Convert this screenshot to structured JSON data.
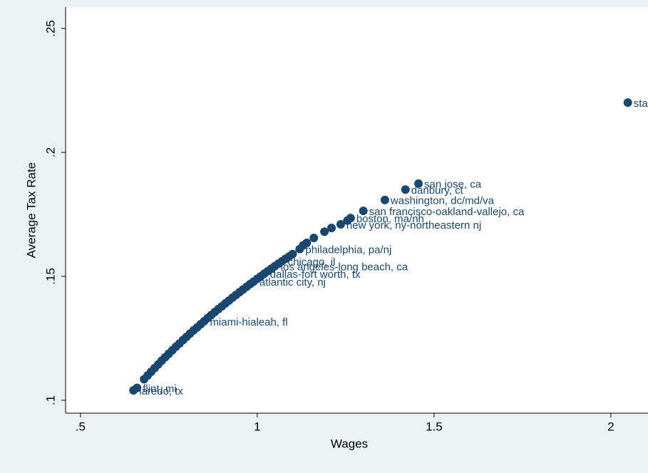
{
  "chart_data": {
    "type": "scatter",
    "xlabel": "Wages",
    "ylabel": "Average Tax Rate",
    "color": "#1a476f",
    "xlim": [
      0.458,
      2.105
    ],
    "ylim": [
      0.0948,
      0.2586
    ],
    "xticks": [
      {
        "value": 0.5,
        "label": ".5"
      },
      1,
      1.5,
      2
    ],
    "yticks": [
      {
        "value": 0.1,
        "label": ".1"
      },
      {
        "value": 0.15,
        "label": ".15"
      },
      {
        "value": 0.2,
        "label": ".2"
      },
      {
        "value": 0.25,
        "label": ".25"
      }
    ],
    "x": [
      0.65,
      0.66,
      0.68,
      0.69,
      0.7,
      0.71,
      0.72,
      0.73,
      0.74,
      0.75,
      0.76,
      0.77,
      0.78,
      0.79,
      0.8,
      0.81,
      0.82,
      0.83,
      0.84,
      0.85,
      0.86,
      0.87,
      0.88,
      0.89,
      0.9,
      0.91,
      0.92,
      0.93,
      0.94,
      0.95,
      0.96,
      0.97,
      0.98,
      0.99,
      1.0,
      1.01,
      1.02,
      1.03,
      1.04,
      1.05,
      1.06,
      1.07,
      1.08,
      1.09,
      1.1,
      1.12,
      1.13,
      1.14,
      1.16,
      1.19,
      1.21,
      1.236,
      1.255,
      1.264,
      1.3,
      1.361,
      1.419,
      1.456,
      2.048
    ],
    "values": [
      0.104,
      0.105,
      0.1085,
      0.11,
      0.1115,
      0.113,
      0.1145,
      0.116,
      0.1174,
      0.1188,
      0.1202,
      0.1216,
      0.1229,
      0.1243,
      0.1256,
      0.1269,
      0.1282,
      0.1294,
      0.1307,
      0.1319,
      0.1332,
      0.1344,
      0.1356,
      0.1368,
      0.1379,
      0.1391,
      0.1402,
      0.1414,
      0.1425,
      0.1436,
      0.1447,
      0.1458,
      0.1469,
      0.1479,
      0.149,
      0.15,
      0.1511,
      0.1521,
      0.1531,
      0.1541,
      0.1551,
      0.1561,
      0.1571,
      0.158,
      0.159,
      0.161,
      0.1625,
      0.1635,
      0.1655,
      0.168,
      0.1695,
      0.171,
      0.1725,
      0.1735,
      0.1764,
      0.1808,
      0.185,
      0.1874,
      0.2201
    ],
    "point_labels": [
      "laredo, tx",
      "flint, mi",
      null,
      null,
      null,
      null,
      null,
      null,
      null,
      null,
      null,
      null,
      null,
      null,
      null,
      null,
      null,
      null,
      null,
      "miami-hialeah, fl",
      null,
      null,
      null,
      null,
      null,
      null,
      null,
      null,
      null,
      null,
      null,
      null,
      null,
      "atlantic city, nj",
      null,
      null,
      "dallas-fort worth, tx",
      null,
      null,
      "los angeles-long beach, ca",
      null,
      "chicago, il",
      null,
      null,
      null,
      "philadelphia, pa/nj",
      null,
      null,
      null,
      null,
      null,
      "new york, ny-northeastern nj",
      null,
      "boston, ma/nh",
      "san francisco-oakland-vallejo, ca",
      "washington, dc/md/va",
      "danbury, ct",
      "san jose, ca",
      "sta"
    ]
  }
}
